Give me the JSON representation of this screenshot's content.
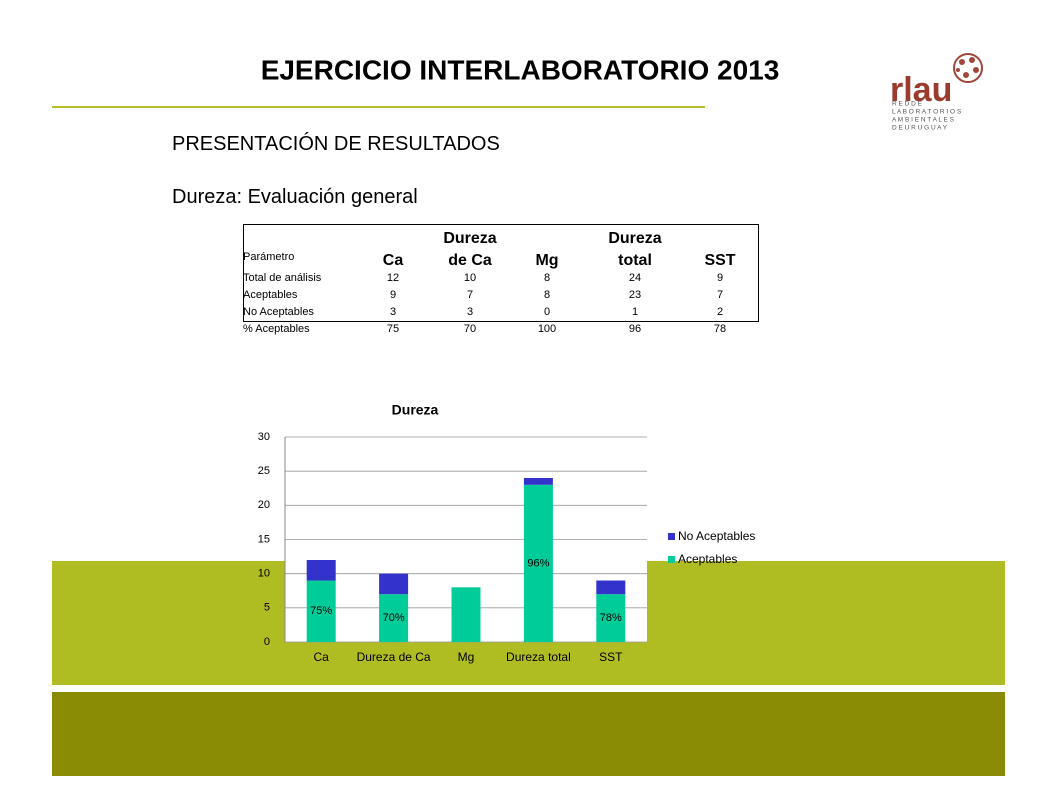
{
  "header": {
    "title": "EJERCICIO INTERLABORATORIO 2013",
    "logo": "rlau",
    "logo_subtitle": [
      "R E D  D E",
      "L A B O R A T O R I O S",
      "A M B I E N T A L E S",
      "D E  U R U G U A Y"
    ]
  },
  "subtitle": "PRESENTACIÓN DE RESULTADOS",
  "section": "Dureza: Evaluación general",
  "table": {
    "header": [
      "Parámetro",
      "Ca",
      "Dureza de Ca",
      "Mg",
      "Dureza total",
      "SST"
    ],
    "rows": [
      [
        "Total de análisis",
        12,
        10,
        8,
        24,
        9
      ],
      [
        "Aceptables",
        9,
        7,
        8,
        23,
        7
      ],
      [
        "No Aceptables",
        3,
        3,
        0,
        1,
        2
      ],
      [
        "% Aceptables",
        75,
        70,
        100,
        96,
        78
      ]
    ]
  },
  "chart_data": {
    "type": "stacked_bar",
    "title": "Dureza",
    "categories": [
      "Ca",
      "Dureza de Ca",
      "Mg",
      "Dureza total",
      "SST"
    ],
    "series": [
      {
        "name": "Aceptables",
        "color": "#00cc99",
        "values": [
          9,
          7,
          8,
          23,
          7
        ]
      },
      {
        "name": "No Aceptables",
        "color": "#3333cc",
        "values": [
          3,
          3,
          0,
          1,
          2
        ]
      }
    ],
    "annotations": [
      "75%",
      "70%",
      null,
      "96%",
      "78%"
    ],
    "ylim": [
      0,
      30
    ],
    "yticks": [
      0,
      5,
      10,
      15,
      20,
      25,
      30
    ],
    "grid": true,
    "legend": "right"
  }
}
